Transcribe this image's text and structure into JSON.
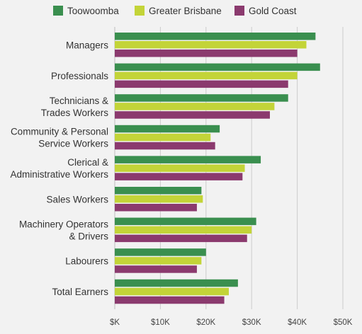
{
  "chart_data": {
    "type": "bar",
    "orientation": "horizontal",
    "title": "",
    "xlabel": "",
    "ylabel": "",
    "categories": [
      [
        "Managers"
      ],
      [
        "Professionals"
      ],
      [
        "Technicians &",
        "Trades Workers"
      ],
      [
        "Community & Personal",
        "Service Workers"
      ],
      [
        "Clerical &",
        "Administrative Workers"
      ],
      [
        "Sales Workers"
      ],
      [
        "Machinery Operators",
        "& Drivers"
      ],
      [
        "Labourers"
      ],
      [
        "Total Earners"
      ]
    ],
    "series": [
      {
        "name": "Toowoomba",
        "color": "#3a8f4f",
        "values": [
          44000,
          45000,
          38000,
          23000,
          32000,
          19000,
          31000,
          20000,
          27000
        ]
      },
      {
        "name": "Greater Brisbane",
        "color": "#c3d438",
        "values": [
          42000,
          40000,
          35000,
          21000,
          28500,
          19300,
          30000,
          19000,
          25000
        ]
      },
      {
        "name": "Gold Coast",
        "color": "#8b3a6e",
        "values": [
          40000,
          38000,
          34000,
          22000,
          28000,
          18000,
          29000,
          18000,
          24000
        ]
      }
    ],
    "xlim": [
      0,
      50000
    ],
    "xticks": [
      0,
      10000,
      20000,
      30000,
      40000,
      50000
    ],
    "xtick_labels": [
      "$K",
      "$10K",
      "$20K",
      "$30K",
      "$40K",
      "$50K"
    ],
    "grid": "vertical",
    "legend_position": "top"
  }
}
